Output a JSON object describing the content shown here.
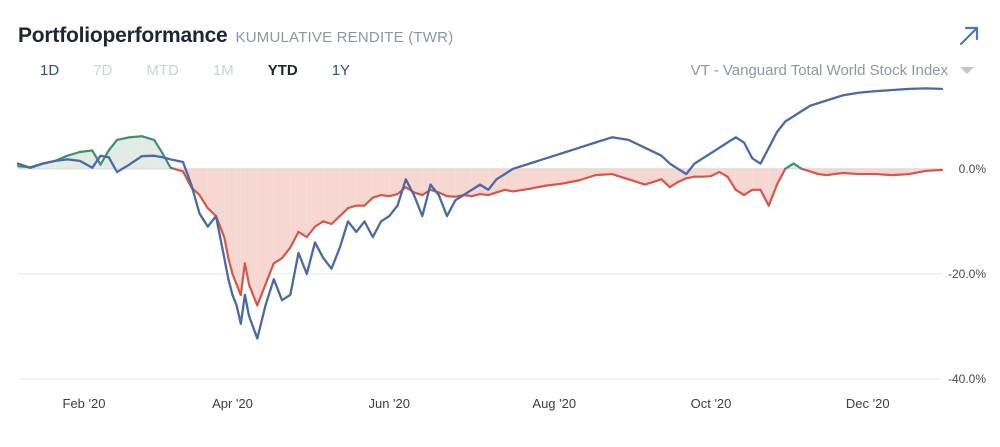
{
  "header": {
    "title": "Portfolioperformance",
    "subtitle": "KUMULATIVE RENDITE (TWR)"
  },
  "ranges": [
    {
      "label": "1D",
      "state": "on"
    },
    {
      "label": "7D",
      "state": "off"
    },
    {
      "label": "MTD",
      "state": "off"
    },
    {
      "label": "1M",
      "state": "off"
    },
    {
      "label": "YTD",
      "state": "selected"
    },
    {
      "label": "1Y",
      "state": "on"
    }
  ],
  "benchmark": {
    "label": "VT - Vanguard Total World Stock Index"
  },
  "icons": {
    "expand": "arrow-up-right-icon",
    "dropdown": "chevron-down-icon"
  },
  "colors": {
    "portfolio": "#4a6aa5",
    "benchmark_below": "#d6574a",
    "benchmark_above": "#3e8f6e",
    "fill_below": "#f6d7d2",
    "fill_above": "#e3ebe7",
    "grid": "#e7e8ea"
  },
  "chart_data": {
    "type": "line",
    "title": "Portfolioperformance",
    "subtitle": "KUMULATIVE RENDITE (TWR)",
    "ylim": [
      -40,
      15
    ],
    "y_ticks": [
      0,
      -20,
      -40
    ],
    "y_tick_labels": [
      "0.0%",
      "-20.0%",
      "-40.0%"
    ],
    "x_ticks": [
      0.8,
      2.6,
      4.5,
      6.5,
      8.4,
      10.3
    ],
    "x_tick_labels": [
      "Feb '20",
      "Apr '20",
      "Jun '20",
      "Aug '20",
      "Oct '20",
      "Dec '20"
    ],
    "grid": true,
    "series": [
      {
        "name": "Portfolio",
        "x": [
          0.0,
          0.15,
          0.3,
          0.45,
          0.6,
          0.75,
          0.9,
          1.0,
          1.1,
          1.2,
          1.35,
          1.5,
          1.65,
          1.75,
          1.85,
          2.0,
          2.1,
          2.2,
          2.3,
          2.4,
          2.5,
          2.55,
          2.6,
          2.65,
          2.7,
          2.75,
          2.8,
          2.9,
          3.0,
          3.1,
          3.2,
          3.3,
          3.4,
          3.5,
          3.6,
          3.7,
          3.8,
          3.9,
          4.0,
          4.1,
          4.2,
          4.3,
          4.4,
          4.5,
          4.6,
          4.7,
          4.8,
          4.9,
          5.0,
          5.1,
          5.2,
          5.3,
          5.4,
          5.5,
          5.6,
          5.7,
          5.8,
          5.9,
          6.0,
          6.2,
          6.4,
          6.6,
          6.8,
          7.0,
          7.2,
          7.4,
          7.6,
          7.8,
          7.9,
          8.0,
          8.1,
          8.2,
          8.3,
          8.4,
          8.5,
          8.6,
          8.7,
          8.8,
          8.9,
          9.0,
          9.1,
          9.2,
          9.3,
          9.4,
          9.5,
          9.6,
          9.7,
          9.8,
          9.9,
          10.0,
          10.2,
          10.4,
          10.6,
          10.8,
          11.0,
          11.2
        ],
        "y": [
          1,
          0.2,
          1,
          1.5,
          1.8,
          1.5,
          0.2,
          2.5,
          2.2,
          -0.6,
          0.8,
          2.4,
          2.5,
          2.2,
          1.8,
          1.3,
          -3,
          -8.5,
          -11,
          -9,
          -17,
          -21,
          -24,
          -26,
          -29.5,
          -24,
          -28,
          -32.3,
          -26,
          -21,
          -25,
          -24,
          -16,
          -20,
          -14,
          -17,
          -19,
          -15,
          -10,
          -12,
          -10,
          -13,
          -10,
          -9,
          -7,
          -2,
          -5,
          -9,
          -3,
          -5,
          -9,
          -6,
          -5,
          -4,
          -3,
          -4,
          -2,
          -1,
          0,
          1,
          2,
          3,
          4,
          5,
          6,
          5.5,
          4,
          2.5,
          1,
          0,
          -1,
          1,
          2,
          3,
          4,
          5,
          6,
          5,
          2,
          1,
          4,
          7,
          9,
          10,
          11,
          12,
          12.5,
          13,
          13.5,
          14,
          14.5,
          14.8,
          15,
          15.2,
          15.3,
          15.2
        ]
      },
      {
        "name": "VT - Vanguard Total World Stock Index",
        "x": [
          0.0,
          0.15,
          0.3,
          0.45,
          0.6,
          0.75,
          0.9,
          1.0,
          1.1,
          1.2,
          1.35,
          1.5,
          1.65,
          1.75,
          1.85,
          2.0,
          2.1,
          2.2,
          2.3,
          2.4,
          2.5,
          2.55,
          2.6,
          2.65,
          2.7,
          2.75,
          2.8,
          2.9,
          3.0,
          3.1,
          3.2,
          3.3,
          3.4,
          3.5,
          3.6,
          3.7,
          3.8,
          3.9,
          4.0,
          4.1,
          4.2,
          4.3,
          4.4,
          4.5,
          4.6,
          4.7,
          4.8,
          4.9,
          5.0,
          5.1,
          5.2,
          5.3,
          5.4,
          5.5,
          5.6,
          5.7,
          5.8,
          5.9,
          6.0,
          6.2,
          6.4,
          6.6,
          6.8,
          7.0,
          7.2,
          7.4,
          7.6,
          7.8,
          7.9,
          8.0,
          8.1,
          8.2,
          8.3,
          8.4,
          8.5,
          8.6,
          8.7,
          8.8,
          8.9,
          9.0,
          9.1,
          9.2,
          9.3,
          9.4,
          9.5,
          9.6,
          9.7,
          9.8,
          9.9,
          10.0,
          10.2,
          10.4,
          10.6,
          10.8,
          11.0,
          11.2
        ],
        "y": [
          0.5,
          0.3,
          1,
          1.5,
          2.5,
          3.2,
          3.5,
          0.8,
          3.5,
          5.5,
          6,
          6.2,
          5.5,
          3,
          0.2,
          -0.5,
          -3.5,
          -5,
          -7.5,
          -9,
          -13,
          -17,
          -20,
          -22,
          -24,
          -18,
          -22,
          -26,
          -22,
          -18,
          -17,
          -15,
          -12,
          -13,
          -11,
          -10,
          -10.5,
          -9,
          -7.5,
          -7,
          -7,
          -5.5,
          -5,
          -5.2,
          -4.8,
          -3.5,
          -4.5,
          -5,
          -4,
          -4.5,
          -5.2,
          -5.3,
          -5,
          -5.2,
          -4.8,
          -5,
          -4.5,
          -4,
          -4.3,
          -3.8,
          -3.2,
          -2.8,
          -2.2,
          -1.2,
          -1,
          -2,
          -3,
          -2,
          -3.5,
          -2.5,
          -1.8,
          -1.5,
          -1.5,
          -1.4,
          -0.6,
          -1.5,
          -4,
          -5,
          -4,
          -4,
          -7,
          -3,
          0,
          1,
          0,
          -0.5,
          -1,
          -1.2,
          -1,
          -0.8,
          -1,
          -1,
          -1.2,
          -1,
          -0.4,
          -0.2
        ]
      }
    ]
  }
}
